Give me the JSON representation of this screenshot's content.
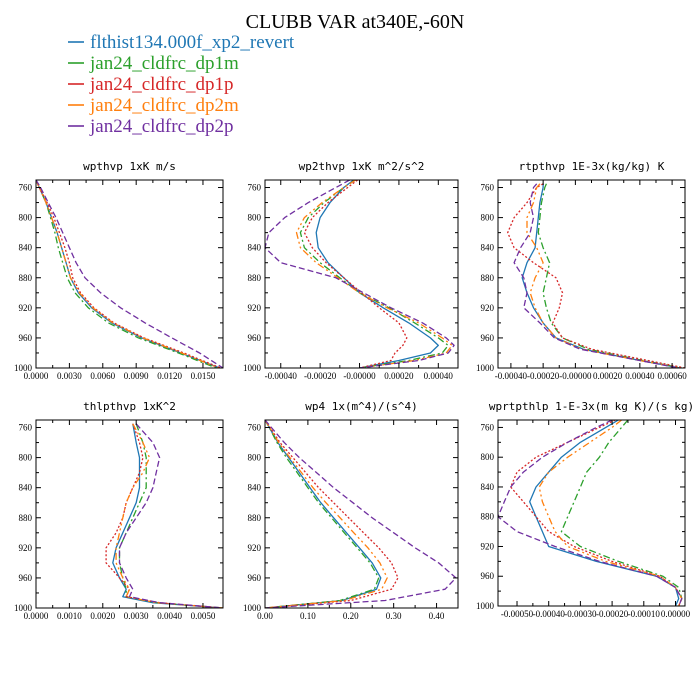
{
  "figure": {
    "title": "CLUBB VAR at340E,-60N"
  },
  "legend": [
    {
      "name": "flthist134.000f_xp2_revert",
      "color": "#1f77b4",
      "dash": "solid"
    },
    {
      "name": "jan24_cldfrc_dp1m",
      "color": "#2ca02c",
      "dash": "dashdot"
    },
    {
      "name": "jan24_cldfrc_dp1p",
      "color": "#d62728",
      "dash": "dot"
    },
    {
      "name": "jan24_cldfrc_dp2m",
      "color": "#ff7f0e",
      "dash": "dashdotdot"
    },
    {
      "name": "jan24_cldfrc_dp2p",
      "color": "#7030a0",
      "dash": "dash"
    }
  ],
  "chart_data": [
    {
      "type": "line",
      "title": "wpthvp  1xK m/s",
      "xlim": [
        0.0,
        0.0168
      ],
      "ylim": [
        1000,
        750
      ],
      "xticks": [
        "0.0000",
        "0.0030",
        "0.0060",
        "0.0090",
        "0.0120",
        "0.0150"
      ],
      "xtick_values": [
        0.0,
        0.003,
        0.006,
        0.009,
        0.012,
        0.015
      ],
      "yticks": [
        760,
        800,
        840,
        880,
        920,
        960,
        1000
      ],
      "levels": [
        750,
        760,
        780,
        800,
        820,
        840,
        860,
        880,
        900,
        920,
        940,
        960,
        980,
        1000
      ],
      "series": [
        {
          "name": "flthist134.000f_xp2_revert",
          "x": [
            0.0,
            0.0003,
            0.0009,
            0.0014,
            0.0019,
            0.0023,
            0.0027,
            0.0031,
            0.0038,
            0.005,
            0.0068,
            0.0095,
            0.013,
            0.0165
          ]
        },
        {
          "name": "jan24_cldfrc_dp1m",
          "x": [
            0.0,
            0.0003,
            0.0009,
            0.0013,
            0.0017,
            0.002,
            0.0024,
            0.0028,
            0.0035,
            0.0047,
            0.0065,
            0.0092,
            0.0128,
            0.0162
          ]
        },
        {
          "name": "jan24_cldfrc_dp1p",
          "x": [
            0.0,
            0.0003,
            0.001,
            0.0016,
            0.0021,
            0.0026,
            0.003,
            0.0033,
            0.004,
            0.0052,
            0.007,
            0.0097,
            0.0133,
            0.0166
          ]
        },
        {
          "name": "jan24_cldfrc_dp2m",
          "x": [
            0.0,
            0.0003,
            0.0009,
            0.0014,
            0.0019,
            0.0023,
            0.0027,
            0.0031,
            0.0039,
            0.0051,
            0.0069,
            0.0096,
            0.0131,
            0.0164
          ]
        },
        {
          "name": "jan24_cldfrc_dp2p",
          "x": [
            0.0,
            0.0004,
            0.0011,
            0.0018,
            0.0024,
            0.003,
            0.0036,
            0.0044,
            0.0058,
            0.0076,
            0.0098,
            0.0122,
            0.0147,
            0.0168
          ]
        }
      ]
    },
    {
      "type": "line",
      "title": "wp2thvp  1xK m^2/s^2",
      "xlim": [
        -0.00048,
        0.0005
      ],
      "ylim": [
        1000,
        750
      ],
      "xticks": [
        "-0.00040",
        "-0.00020",
        "-0.00000",
        "0.00020",
        "0.00040"
      ],
      "xtick_values": [
        -0.0004,
        -0.0002,
        0.0,
        0.0002,
        0.0004
      ],
      "yticks": [
        760,
        800,
        840,
        880,
        920,
        960,
        1000
      ],
      "levels": [
        750,
        760,
        780,
        800,
        820,
        840,
        860,
        880,
        900,
        920,
        940,
        960,
        970,
        980,
        990,
        1000
      ],
      "series": [
        {
          "name": "flthist134.000f_xp2_revert",
          "x": [
            -3e-05,
            -8e-05,
            -0.00015,
            -0.0002,
            -0.00022,
            -0.00021,
            -0.00016,
            -8e-05,
            0.0,
            0.00012,
            0.00025,
            0.00036,
            0.0004,
            0.00036,
            0.0002,
            0.0
          ]
        },
        {
          "name": "jan24_cldfrc_dp1m",
          "x": [
            -2e-05,
            -8e-05,
            -0.00018,
            -0.00026,
            -0.0003,
            -0.00028,
            -0.0002,
            -0.0001,
            0.0,
            0.00015,
            0.00028,
            0.0004,
            0.00045,
            0.00042,
            0.00025,
            0.0
          ]
        },
        {
          "name": "jan24_cldfrc_dp1p",
          "x": [
            -1e-05,
            -6e-05,
            -0.00016,
            -0.00024,
            -0.00028,
            -0.00024,
            -0.00017,
            -8e-05,
            1e-05,
            0.0001,
            0.0002,
            0.00024,
            0.00022,
            0.00018,
            0.00016,
            0.0
          ]
        },
        {
          "name": "jan24_cldfrc_dp2m",
          "x": [
            -2e-05,
            -8e-05,
            -0.00019,
            -0.00028,
            -0.00032,
            -0.0003,
            -0.00022,
            -0.00011,
            0.0,
            0.00014,
            0.0003,
            0.00042,
            0.00047,
            0.00044,
            0.00028,
            0.0
          ]
        },
        {
          "name": "jan24_cldfrc_dp2p",
          "x": [
            -5e-05,
            -0.00012,
            -0.00026,
            -0.00038,
            -0.00046,
            -0.00048,
            -0.0004,
            -0.00012,
            2e-05,
            0.00016,
            0.00032,
            0.00044,
            0.00048,
            0.00045,
            0.0003,
            0.0
          ]
        }
      ]
    },
    {
      "type": "line",
      "title": "rtpthvp  1E-3x(kg/kg) K",
      "xlim": [
        -0.00048,
        0.00068
      ],
      "ylim": [
        1000,
        750
      ],
      "xticks": [
        "-0.00040",
        "-0.00020",
        "-0.00000",
        "0.00020",
        "0.00040",
        "0.00060"
      ],
      "xtick_values": [
        -0.0004,
        -0.0002,
        0.0,
        0.0002,
        0.0004,
        0.0006
      ],
      "yticks": [
        760,
        800,
        840,
        880,
        920,
        960,
        1000
      ],
      "levels": [
        755,
        760,
        780,
        800,
        820,
        840,
        860,
        880,
        900,
        920,
        940,
        960,
        975,
        990,
        1000
      ],
      "series": [
        {
          "name": "flthist134.000f_xp2_revert",
          "x": [
            -0.0002,
            -0.0002,
            -0.00022,
            -0.00023,
            -0.00024,
            -0.00025,
            -0.0003,
            -0.00033,
            -0.0003,
            -0.00026,
            -0.0002,
            -0.00012,
            5e-05,
            0.0004,
            0.00065
          ]
        },
        {
          "name": "jan24_cldfrc_dp1m",
          "x": [
            -0.00018,
            -0.00019,
            -0.00021,
            -0.00022,
            -0.00023,
            -0.0002,
            -0.00016,
            -0.00018,
            -0.0002,
            -0.00018,
            -0.00015,
            -8e-05,
            8e-05,
            0.00042,
            0.00066
          ]
        },
        {
          "name": "jan24_cldfrc_dp1p",
          "x": [
            -0.0002,
            -0.00024,
            -0.0003,
            -0.00038,
            -0.00042,
            -0.00038,
            -0.00026,
            -0.00012,
            -8e-05,
            -0.0001,
            -0.00014,
            -8e-05,
            0.0001,
            0.00045,
            0.00068
          ]
        },
        {
          "name": "jan24_cldfrc_dp2m",
          "x": [
            -0.00022,
            -0.00024,
            -0.00026,
            -0.0003,
            -0.0003,
            -0.00024,
            -0.0002,
            -0.00025,
            -0.00028,
            -0.00025,
            -0.0002,
            -0.00012,
            4e-05,
            0.0004,
            0.00065
          ]
        },
        {
          "name": "jan24_cldfrc_dp2p",
          "x": [
            -0.00024,
            -0.00026,
            -0.00028,
            -0.00026,
            -0.00028,
            -0.00034,
            -0.00038,
            -0.00032,
            -0.0003,
            -0.00032,
            -0.00022,
            -0.00013,
            3e-05,
            0.0004,
            0.00064
          ]
        }
      ]
    },
    {
      "type": "line",
      "title": "thlpthvp  1xK^2",
      "xlim": [
        0.0,
        0.0056
      ],
      "ylim": [
        1000,
        750
      ],
      "xticks": [
        "0.0000",
        "0.0010",
        "0.0020",
        "0.0030",
        "0.0040",
        "0.0050"
      ],
      "xtick_values": [
        0.0,
        0.001,
        0.002,
        0.003,
        0.004,
        0.005
      ],
      "yticks": [
        760,
        800,
        840,
        880,
        920,
        960,
        1000
      ],
      "levels": [
        755,
        780,
        800,
        820,
        840,
        860,
        880,
        900,
        920,
        940,
        960,
        975,
        985,
        993,
        1000
      ],
      "series": [
        {
          "name": "flthist134.000f_xp2_revert",
          "x": [
            0.0029,
            0.003,
            0.0031,
            0.0031,
            0.0031,
            0.003,
            0.0028,
            0.0026,
            0.0024,
            0.0023,
            0.0025,
            0.0027,
            0.0026,
            0.0035,
            0.0056
          ]
        },
        {
          "name": "jan24_cldfrc_dp1m",
          "x": [
            0.003,
            0.0032,
            0.0033,
            0.0033,
            0.0033,
            0.0031,
            0.0029,
            0.0027,
            0.0025,
            0.0025,
            0.0026,
            0.0027,
            0.0027,
            0.0036,
            0.0056
          ]
        },
        {
          "name": "jan24_cldfrc_dp1p",
          "x": [
            0.0029,
            0.0031,
            0.0032,
            0.0031,
            0.0029,
            0.0027,
            0.0026,
            0.0024,
            0.0021,
            0.0021,
            0.0025,
            0.0028,
            0.0027,
            0.0037,
            0.0056
          ]
        },
        {
          "name": "jan24_cldfrc_dp2m",
          "x": [
            0.0029,
            0.0032,
            0.0034,
            0.0032,
            0.0029,
            0.0027,
            0.0026,
            0.0025,
            0.0024,
            0.0024,
            0.0026,
            0.0028,
            0.0027,
            0.0036,
            0.0056
          ]
        },
        {
          "name": "jan24_cldfrc_dp2p",
          "x": [
            0.003,
            0.0035,
            0.0037,
            0.0036,
            0.0035,
            0.0033,
            0.003,
            0.0027,
            0.0025,
            0.0025,
            0.0027,
            0.0029,
            0.0028,
            0.0037,
            0.0056
          ]
        }
      ]
    },
    {
      "type": "line",
      "title": "wp4  1x(m^4)/(s^4)",
      "xlim": [
        0.0,
        0.45
      ],
      "ylim": [
        1000,
        750
      ],
      "xticks": [
        "0.00",
        "0.10",
        "0.20",
        "0.30",
        "0.40"
      ],
      "xtick_values": [
        0.0,
        0.1,
        0.2,
        0.3,
        0.4
      ],
      "yticks": [
        760,
        800,
        840,
        880,
        920,
        960,
        1000
      ],
      "levels": [
        750,
        760,
        780,
        800,
        820,
        840,
        860,
        880,
        900,
        920,
        940,
        960,
        975,
        990,
        1000
      ],
      "series": [
        {
          "name": "flthist134.000f_xp2_revert",
          "x": [
            0.0,
            0.01,
            0.03,
            0.055,
            0.08,
            0.105,
            0.13,
            0.16,
            0.19,
            0.22,
            0.25,
            0.27,
            0.26,
            0.18,
            0.0
          ]
        },
        {
          "name": "jan24_cldfrc_dp1m",
          "x": [
            0.0,
            0.01,
            0.028,
            0.05,
            0.075,
            0.1,
            0.125,
            0.155,
            0.185,
            0.215,
            0.245,
            0.265,
            0.255,
            0.175,
            0.0
          ]
        },
        {
          "name": "jan24_cldfrc_dp1p",
          "x": [
            0.0,
            0.012,
            0.035,
            0.065,
            0.095,
            0.125,
            0.16,
            0.195,
            0.23,
            0.265,
            0.295,
            0.31,
            0.295,
            0.2,
            0.0
          ]
        },
        {
          "name": "jan24_cldfrc_dp2m",
          "x": [
            0.0,
            0.011,
            0.032,
            0.058,
            0.085,
            0.112,
            0.142,
            0.175,
            0.207,
            0.24,
            0.268,
            0.285,
            0.272,
            0.185,
            0.0
          ]
        },
        {
          "name": "jan24_cldfrc_dp2p",
          "x": [
            0.0,
            0.015,
            0.045,
            0.08,
            0.12,
            0.16,
            0.205,
            0.25,
            0.3,
            0.35,
            0.405,
            0.445,
            0.42,
            0.28,
            0.0
          ]
        }
      ]
    },
    {
      "type": "line",
      "title": "wprtpthlp  1-E-3x(m kg K)/(s kg)",
      "xlim": [
        -0.00056,
        3e-05
      ],
      "ylim": [
        1000,
        750
      ],
      "xticks": [
        "-0.00050",
        "-0.00040",
        "-0.00030",
        "-0.00020",
        "-0.00010",
        "0.00000"
      ],
      "xtick_values": [
        -0.0005,
        -0.0004,
        -0.0003,
        -0.0002,
        -0.0001,
        0.0
      ],
      "yticks": [
        760,
        800,
        840,
        880,
        920,
        960,
        1000
      ],
      "levels": [
        750,
        760,
        780,
        800,
        820,
        840,
        860,
        880,
        900,
        920,
        940,
        960,
        975,
        990,
        1000
      ],
      "series": [
        {
          "name": "flthist134.000f_xp2_revert",
          "x": [
            -0.00018,
            -0.00022,
            -0.0003,
            -0.00036,
            -0.0004,
            -0.00044,
            -0.00046,
            -0.00044,
            -0.00042,
            -0.0004,
            -0.00025,
            -6e-05,
            0.0,
            1e-05,
            0.0
          ]
        },
        {
          "name": "jan24_cldfrc_dp1m",
          "x": [
            -0.00015,
            -0.00017,
            -0.00021,
            -0.00024,
            -0.00028,
            -0.0003,
            -0.00032,
            -0.00034,
            -0.00036,
            -0.0003,
            -0.00018,
            -4e-05,
            1e-05,
            2e-05,
            1e-05
          ]
        },
        {
          "name": "jan24_cldfrc_dp1p",
          "x": [
            -0.00019,
            -0.00024,
            -0.00034,
            -0.00044,
            -0.0005,
            -0.00052,
            -0.00048,
            -0.00044,
            -0.0004,
            -0.00032,
            -0.0002,
            -5e-05,
            0.0,
            2e-05,
            1e-05
          ]
        },
        {
          "name": "jan24_cldfrc_dp2m",
          "x": [
            -0.00017,
            -0.0002,
            -0.00027,
            -0.00034,
            -0.0004,
            -0.00043,
            -0.00042,
            -0.0004,
            -0.00038,
            -0.00034,
            -0.00022,
            -5e-05,
            0.0,
            2e-05,
            1e-05
          ]
        },
        {
          "name": "jan24_cldfrc_dp2p",
          "x": [
            -0.0002,
            -0.00025,
            -0.00034,
            -0.00042,
            -0.00048,
            -0.00052,
            -0.00054,
            -0.00056,
            -0.0005,
            -0.00038,
            -0.00024,
            -6e-05,
            0.0,
            2e-05,
            1e-05
          ]
        }
      ]
    }
  ]
}
